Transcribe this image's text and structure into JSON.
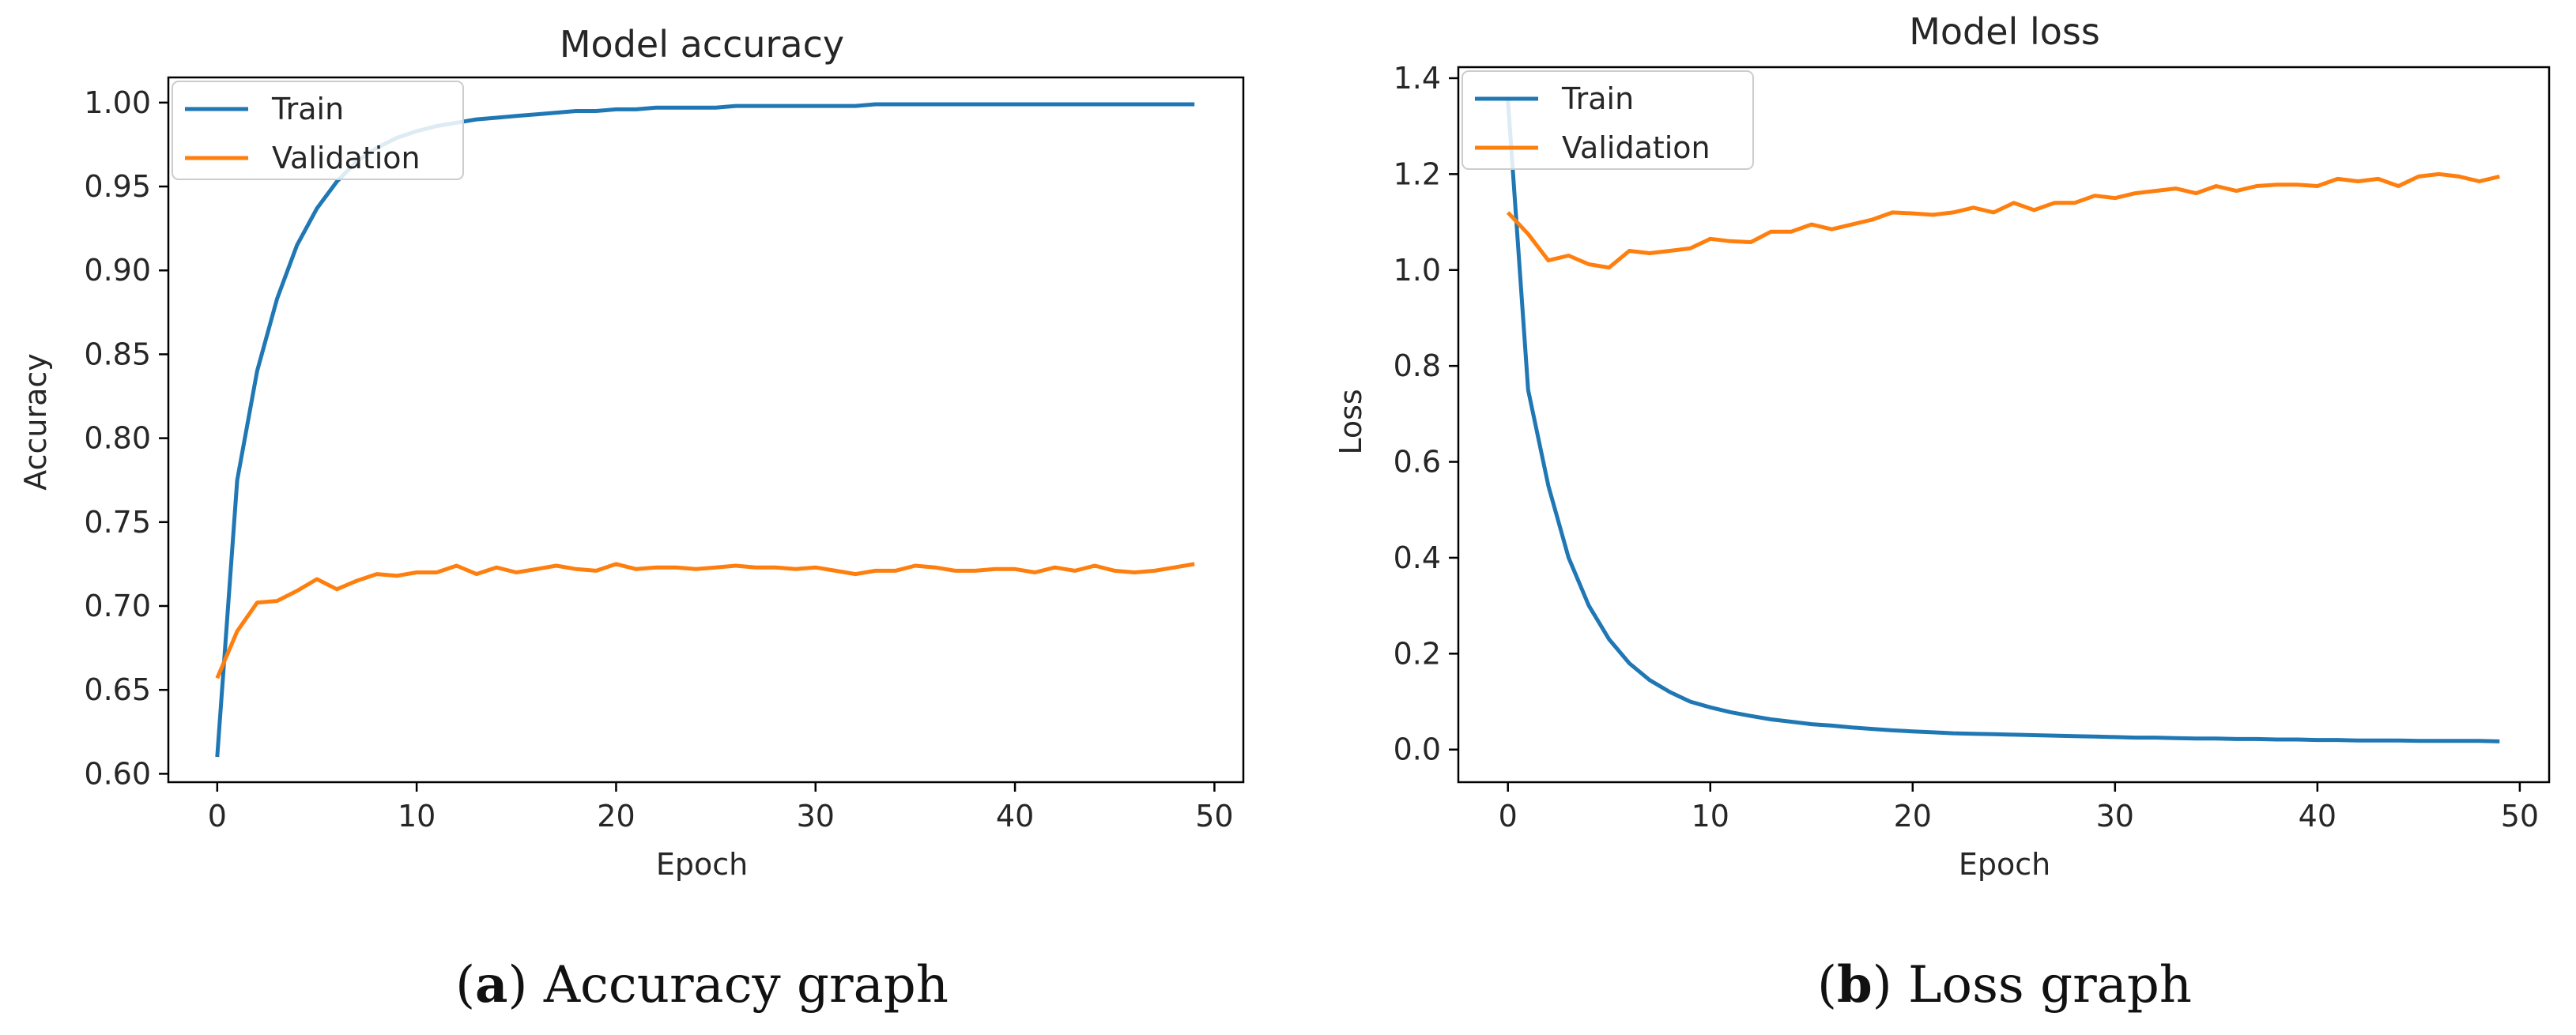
{
  "chart_data": [
    {
      "type": "line",
      "title": "Model accuracy",
      "xlabel": "Epoch",
      "ylabel": "Accuracy",
      "xlim": [
        -2.45,
        51.45
      ],
      "ylim": [
        0.595,
        1.015
      ],
      "xticks": [
        0,
        10,
        20,
        30,
        40,
        50
      ],
      "xtick_labels": [
        "0",
        "10",
        "20",
        "30",
        "40",
        "50"
      ],
      "yticks": [
        0.6,
        0.65,
        0.7,
        0.75,
        0.8,
        0.85,
        0.9,
        0.95,
        1.0
      ],
      "ytick_labels": [
        "0.60",
        "0.65",
        "0.70",
        "0.75",
        "0.80",
        "0.85",
        "0.90",
        "0.95",
        "1.00"
      ],
      "legend": "top-left",
      "grid": false,
      "series": [
        {
          "name": "Train",
          "color": "#1f77b4",
          "x": [
            0,
            1,
            2,
            3,
            4,
            5,
            6,
            7,
            8,
            9,
            10,
            11,
            12,
            13,
            14,
            15,
            16,
            17,
            18,
            19,
            20,
            21,
            22,
            23,
            24,
            25,
            26,
            27,
            28,
            29,
            30,
            31,
            32,
            33,
            34,
            35,
            36,
            37,
            38,
            39,
            40,
            41,
            42,
            43,
            44,
            45,
            46,
            47,
            48,
            49
          ],
          "values": [
            0.61,
            0.775,
            0.84,
            0.883,
            0.915,
            0.937,
            0.953,
            0.965,
            0.973,
            0.979,
            0.983,
            0.986,
            0.988,
            0.99,
            0.991,
            0.992,
            0.993,
            0.994,
            0.995,
            0.995,
            0.996,
            0.996,
            0.997,
            0.997,
            0.997,
            0.997,
            0.998,
            0.998,
            0.998,
            0.998,
            0.998,
            0.998,
            0.998,
            0.999,
            0.999,
            0.999,
            0.999,
            0.999,
            0.999,
            0.999,
            0.999,
            0.999,
            0.999,
            0.999,
            0.999,
            0.999,
            0.999,
            0.999,
            0.999,
            0.999
          ]
        },
        {
          "name": "Validation",
          "color": "#ff7f0e",
          "x": [
            0,
            1,
            2,
            3,
            4,
            5,
            6,
            7,
            8,
            9,
            10,
            11,
            12,
            13,
            14,
            15,
            16,
            17,
            18,
            19,
            20,
            21,
            22,
            23,
            24,
            25,
            26,
            27,
            28,
            29,
            30,
            31,
            32,
            33,
            34,
            35,
            36,
            37,
            38,
            39,
            40,
            41,
            42,
            43,
            44,
            45,
            46,
            47,
            48,
            49
          ],
          "values": [
            0.657,
            0.685,
            0.702,
            0.703,
            0.709,
            0.716,
            0.71,
            0.715,
            0.719,
            0.718,
            0.72,
            0.72,
            0.724,
            0.719,
            0.723,
            0.72,
            0.722,
            0.724,
            0.722,
            0.721,
            0.725,
            0.722,
            0.723,
            0.723,
            0.722,
            0.723,
            0.724,
            0.723,
            0.723,
            0.722,
            0.723,
            0.721,
            0.719,
            0.721,
            0.721,
            0.724,
            0.723,
            0.721,
            0.721,
            0.722,
            0.722,
            0.72,
            0.723,
            0.721,
            0.724,
            0.721,
            0.72,
            0.721,
            0.723,
            0.725
          ]
        }
      ]
    },
    {
      "type": "line",
      "title": "Model loss",
      "xlabel": "Epoch",
      "ylabel": "Loss",
      "xlim": [
        -2.45,
        51.45
      ],
      "ylim": [
        -0.068,
        1.423
      ],
      "xticks": [
        0,
        10,
        20,
        30,
        40,
        50
      ],
      "xtick_labels": [
        "0",
        "10",
        "20",
        "30",
        "40",
        "50"
      ],
      "yticks": [
        0.0,
        0.2,
        0.4,
        0.6,
        0.8,
        1.0,
        1.2,
        1.4
      ],
      "ytick_labels": [
        "0.0",
        "0.2",
        "0.4",
        "0.6",
        "0.8",
        "1.0",
        "1.2",
        "1.4"
      ],
      "legend": "top-left",
      "grid": false,
      "series": [
        {
          "name": "Train",
          "color": "#1f77b4",
          "x": [
            0,
            1,
            2,
            3,
            4,
            5,
            6,
            7,
            8,
            9,
            10,
            11,
            12,
            13,
            14,
            15,
            16,
            17,
            18,
            19,
            20,
            21,
            22,
            23,
            24,
            25,
            26,
            27,
            28,
            29,
            30,
            31,
            32,
            33,
            34,
            35,
            36,
            37,
            38,
            39,
            40,
            41,
            42,
            43,
            44,
            45,
            46,
            47,
            48,
            49
          ],
          "values": [
            1.355,
            0.75,
            0.55,
            0.4,
            0.3,
            0.23,
            0.18,
            0.145,
            0.12,
            0.1,
            0.088,
            0.078,
            0.07,
            0.063,
            0.058,
            0.053,
            0.05,
            0.046,
            0.043,
            0.04,
            0.038,
            0.036,
            0.034,
            0.033,
            0.032,
            0.031,
            0.03,
            0.029,
            0.028,
            0.027,
            0.026,
            0.025,
            0.025,
            0.024,
            0.023,
            0.023,
            0.022,
            0.022,
            0.021,
            0.021,
            0.02,
            0.02,
            0.019,
            0.019,
            0.019,
            0.018,
            0.018,
            0.018,
            0.018,
            0.017
          ]
        },
        {
          "name": "Validation",
          "color": "#ff7f0e",
          "x": [
            0,
            1,
            2,
            3,
            4,
            5,
            6,
            7,
            8,
            9,
            10,
            11,
            12,
            13,
            14,
            15,
            16,
            17,
            18,
            19,
            20,
            21,
            22,
            23,
            24,
            25,
            26,
            27,
            28,
            29,
            30,
            31,
            32,
            33,
            34,
            35,
            36,
            37,
            38,
            39,
            40,
            41,
            42,
            43,
            44,
            45,
            46,
            47,
            48,
            49
          ],
          "values": [
            1.12,
            1.075,
            1.02,
            1.03,
            1.012,
            1.005,
            1.04,
            1.035,
            1.04,
            1.045,
            1.065,
            1.06,
            1.058,
            1.08,
            1.08,
            1.095,
            1.085,
            1.095,
            1.105,
            1.12,
            1.118,
            1.115,
            1.12,
            1.13,
            1.12,
            1.14,
            1.125,
            1.14,
            1.14,
            1.155,
            1.15,
            1.16,
            1.165,
            1.17,
            1.16,
            1.175,
            1.165,
            1.175,
            1.178,
            1.178,
            1.175,
            1.19,
            1.185,
            1.19,
            1.175,
            1.195,
            1.2,
            1.195,
            1.185,
            1.195
          ]
        }
      ]
    }
  ],
  "captions": [
    {
      "letter": "a",
      "text": " Accuracy graph"
    },
    {
      "letter": "b",
      "text": " Loss graph"
    }
  ]
}
